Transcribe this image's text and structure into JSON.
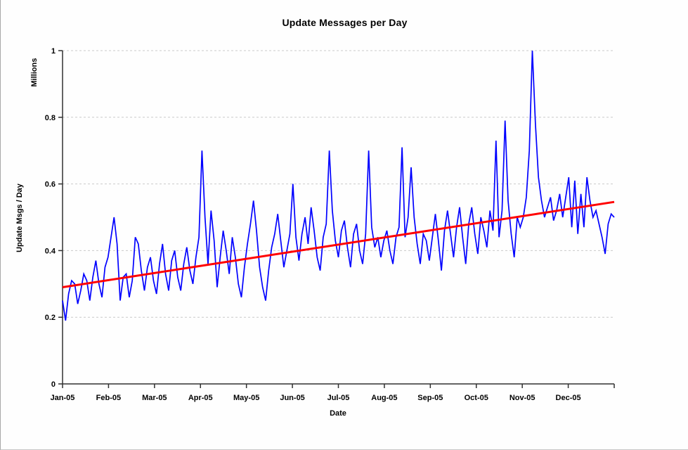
{
  "chart_data": {
    "type": "line",
    "title": "Update Messages per Day",
    "xlabel": "Date",
    "ylabel": "Update Msgs / Day",
    "y_axis_units": "Millions",
    "ylim": [
      0,
      1
    ],
    "ytick_labels": [
      "0",
      "0.2",
      "0.4",
      "0.6",
      "0.8",
      "1"
    ],
    "xtick_labels": [
      "Jan-05",
      "Feb-05",
      "Mar-05",
      "Apr-05",
      "May-05",
      "Jun-05",
      "Jul-05",
      "Aug-05",
      "Sep-05",
      "Oct-05",
      "Nov-05",
      "Dec-05"
    ],
    "grid": "horizontal dashed",
    "legend_position": "none",
    "colors": {
      "series": "#0000ff",
      "trend": "#ff0000",
      "grid": "#c9c9c9",
      "axis": "#303030",
      "text": "#000000",
      "background": "#fefefe"
    },
    "series": [
      {
        "name": "Update Msgs / Day (daily, millions)",
        "kind": "line",
        "color": "#0000ff",
        "days_per_point": 2,
        "values": [
          0.25,
          0.19,
          0.27,
          0.31,
          0.3,
          0.24,
          0.28,
          0.33,
          0.31,
          0.25,
          0.32,
          0.37,
          0.3,
          0.26,
          0.35,
          0.38,
          0.44,
          0.5,
          0.42,
          0.25,
          0.32,
          0.33,
          0.26,
          0.31,
          0.44,
          0.42,
          0.34,
          0.28,
          0.35,
          0.38,
          0.31,
          0.27,
          0.36,
          0.42,
          0.33,
          0.28,
          0.37,
          0.4,
          0.32,
          0.28,
          0.36,
          0.41,
          0.34,
          0.3,
          0.38,
          0.44,
          0.7,
          0.5,
          0.36,
          0.52,
          0.43,
          0.29,
          0.38,
          0.46,
          0.4,
          0.33,
          0.44,
          0.38,
          0.3,
          0.26,
          0.35,
          0.42,
          0.48,
          0.55,
          0.46,
          0.35,
          0.29,
          0.25,
          0.34,
          0.41,
          0.45,
          0.51,
          0.43,
          0.35,
          0.4,
          0.45,
          0.6,
          0.44,
          0.37,
          0.45,
          0.5,
          0.42,
          0.53,
          0.46,
          0.38,
          0.34,
          0.44,
          0.48,
          0.7,
          0.52,
          0.43,
          0.38,
          0.46,
          0.49,
          0.41,
          0.35,
          0.45,
          0.48,
          0.4,
          0.36,
          0.45,
          0.7,
          0.47,
          0.41,
          0.44,
          0.38,
          0.43,
          0.46,
          0.4,
          0.36,
          0.44,
          0.47,
          0.71,
          0.44,
          0.5,
          0.65,
          0.5,
          0.42,
          0.36,
          0.45,
          0.43,
          0.37,
          0.44,
          0.51,
          0.43,
          0.34,
          0.46,
          0.52,
          0.45,
          0.38,
          0.47,
          0.53,
          0.44,
          0.36,
          0.48,
          0.53,
          0.45,
          0.39,
          0.5,
          0.46,
          0.41,
          0.52,
          0.46,
          0.73,
          0.44,
          0.52,
          0.79,
          0.55,
          0.45,
          0.38,
          0.5,
          0.47,
          0.5,
          0.56,
          0.7,
          1.0,
          0.78,
          0.62,
          0.55,
          0.5,
          0.53,
          0.56,
          0.49,
          0.52,
          0.57,
          0.5,
          0.56,
          0.62,
          0.47,
          0.61,
          0.45,
          0.57,
          0.47,
          0.62,
          0.55,
          0.5,
          0.52,
          0.48,
          0.44,
          0.39,
          0.48,
          0.51,
          0.5
        ]
      },
      {
        "name": "Linear trend",
        "kind": "trendline",
        "color": "#ff0000",
        "start": 0.29,
        "end": 0.546
      }
    ]
  }
}
